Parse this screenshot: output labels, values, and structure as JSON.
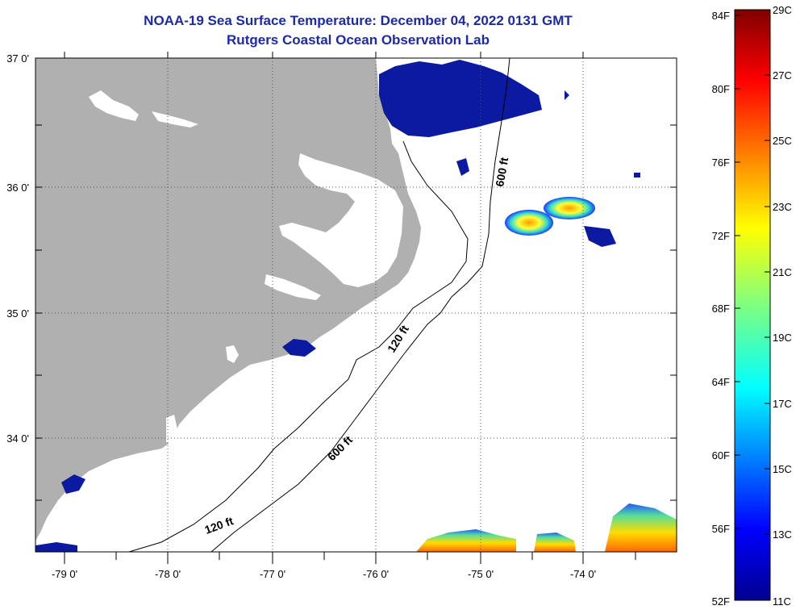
{
  "header": {
    "title": "NOAA-19 Sea Surface Temperature:  December 04, 2022 0131 GMT",
    "subtitle": "Rutgers Coastal Ocean Observation Lab"
  },
  "map": {
    "lat_labels": [
      "37 0'",
      "36 0'",
      "35 0'",
      "34 0'"
    ],
    "lon_labels": [
      "-79 0'",
      "-78 0'",
      "-77 0'",
      "-76 0'",
      "-75 0'",
      "-74 0'"
    ],
    "contour_labels": [
      "600 ft",
      "120 ft",
      "600 ft",
      "120 ft"
    ],
    "colors": {
      "land": "#b0b0b0",
      "ocean": "#ffffff",
      "cold_water": "#0b1aa0"
    }
  },
  "colorbar": {
    "fahrenheit_labels": [
      "84F",
      "80F",
      "76F",
      "72F",
      "68F",
      "64F",
      "60F",
      "56F",
      "52F"
    ],
    "celsius_labels": [
      "29C",
      "27C",
      "25C",
      "23C",
      "21C",
      "19C",
      "17C",
      "15C",
      "13C",
      "11C"
    ]
  }
}
